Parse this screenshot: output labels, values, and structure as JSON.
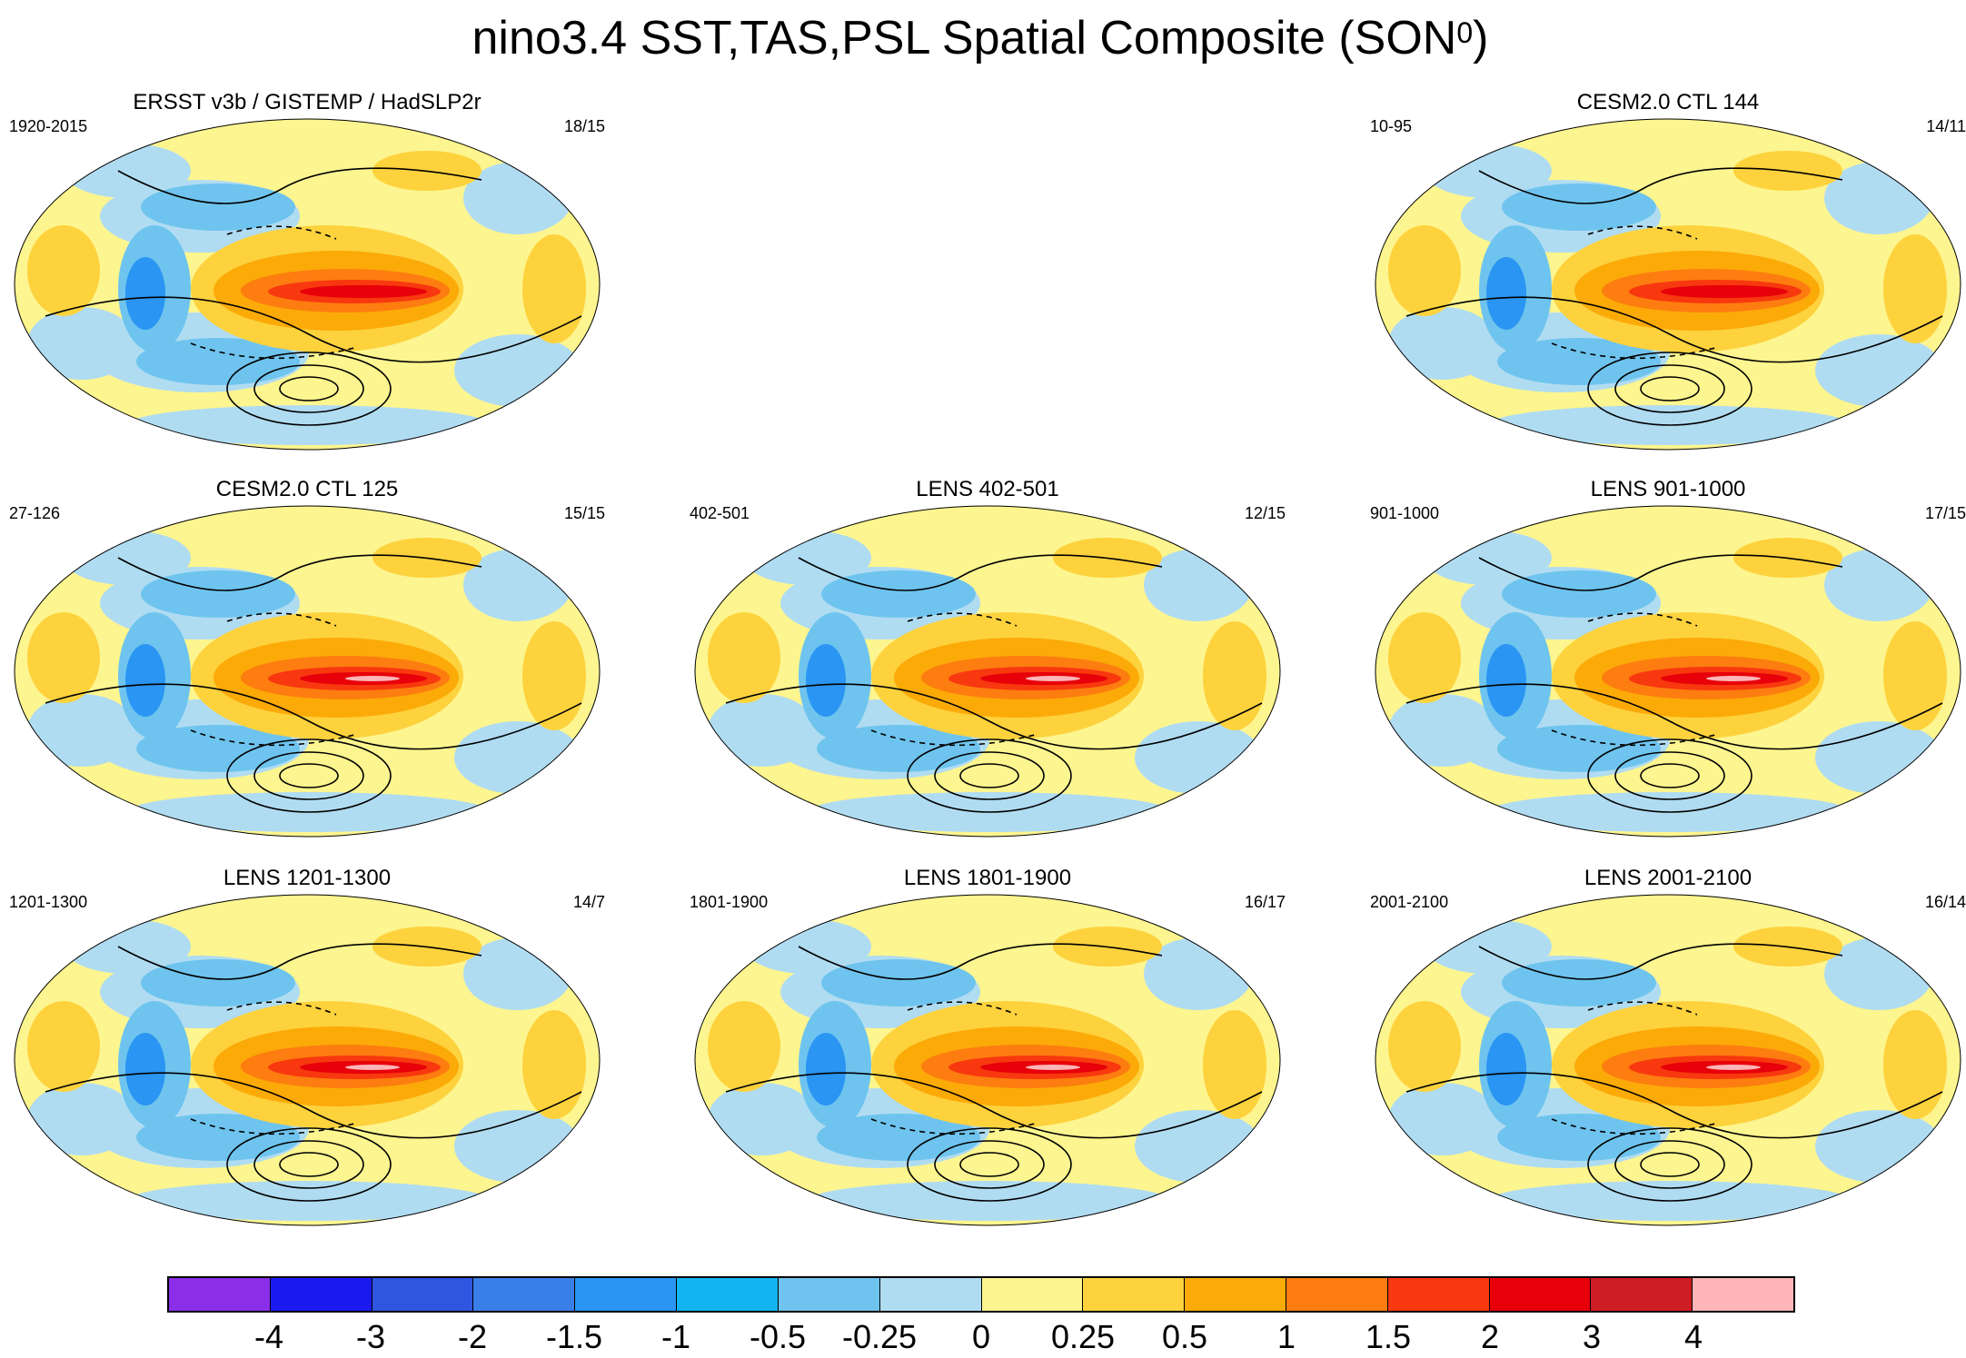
{
  "title": "nino3.4 SST,TAS,PSL Spatial Composite (SON",
  "title_superscript": "0",
  "title_suffix": ")",
  "panels": [
    {
      "title": "ERSST v3b / GISTEMP / HadSLP2r",
      "period": "1920-2015",
      "count": "18/15"
    },
    {
      "title": "CESM2.0 CTL 144",
      "period": "10-95",
      "count": "14/11"
    },
    {
      "title": "CESM2.0 CTL 125",
      "period": "27-126",
      "count": "15/15"
    },
    {
      "title": "LENS 402-501",
      "period": "402-501",
      "count": "12/15"
    },
    {
      "title": "LENS 901-1000",
      "period": "901-1000",
      "count": "17/15"
    },
    {
      "title": "LENS 1201-1300",
      "period": "1201-1300",
      "count": "14/7"
    },
    {
      "title": "LENS 1801-1900",
      "period": "1801-1900",
      "count": "16/17"
    },
    {
      "title": "LENS 2001-2100",
      "period": "2001-2100",
      "count": "16/14"
    }
  ],
  "colorbar": {
    "colors": [
      "#8b2ee8",
      "#1a1aef",
      "#2f56e0",
      "#3a7fe8",
      "#2a95f2",
      "#12b5f2",
      "#6ec4ee",
      "#b0dcf2",
      "#fdf58f",
      "#fdd23d",
      "#fcaa08",
      "#fd7d10",
      "#f8380f",
      "#e7000a",
      "#ce1d23",
      "#fdb5b8"
    ],
    "labels": [
      "-4",
      "-3",
      "-2",
      "-1.5",
      "-1",
      "-0.5",
      "-0.25",
      "0",
      "0.25",
      "0.5",
      "1",
      "1.5",
      "2",
      "3",
      "4"
    ]
  },
  "colors": {
    "land_edge": "#b0b0b0",
    "contour": "#000000"
  }
}
